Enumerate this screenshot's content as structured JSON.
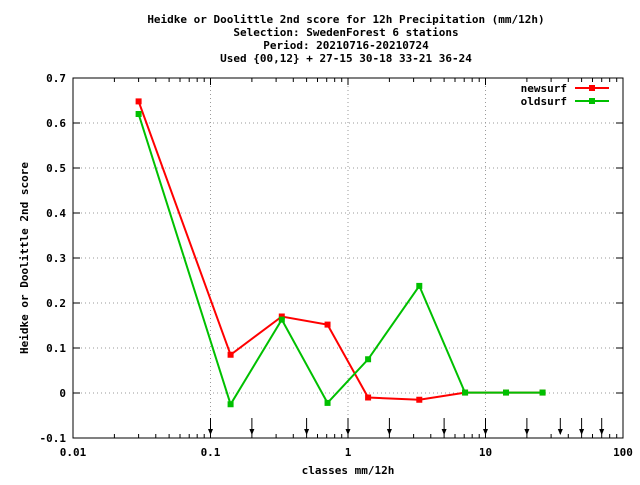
{
  "chart_data": {
    "type": "line",
    "title_lines": [
      "Heidke or Doolittle 2nd score  for 12h Precipitation (mm/12h)",
      "Selection: SwedenForest      6 stations",
      "Period: 20210716-20210724",
      "Used {00,12} + 27-15 30-18 33-21 36-24"
    ],
    "xlabel": "classes mm/12h",
    "ylabel": "Heidke or Doolittle 2nd score",
    "x_scale": "log",
    "xlim": [
      0.01,
      100
    ],
    "ylim": [
      -0.1,
      0.7
    ],
    "x_ticks": [
      {
        "value": 0.01,
        "label": "0.01"
      },
      {
        "value": 0.1,
        "label": "0.1"
      },
      {
        "value": 1,
        "label": "1"
      },
      {
        "value": 10,
        "label": "10"
      },
      {
        "value": 100,
        "label": "100"
      }
    ],
    "y_ticks": [
      {
        "value": -0.1,
        "label": "-0.1"
      },
      {
        "value": 0,
        "label": "0"
      },
      {
        "value": 0.1,
        "label": "0.1"
      },
      {
        "value": 0.2,
        "label": "0.2"
      },
      {
        "value": 0.3,
        "label": "0.3"
      },
      {
        "value": 0.4,
        "label": "0.4"
      },
      {
        "value": 0.5,
        "label": "0.5"
      },
      {
        "value": 0.6,
        "label": "0.6"
      },
      {
        "value": 0.7,
        "label": "0.7"
      }
    ],
    "grid": true,
    "legend_position": "top-right",
    "class_markers": [
      0.1,
      0.2,
      0.5,
      1,
      2,
      5,
      10,
      20,
      35,
      50,
      70
    ],
    "series": [
      {
        "name": "newsurf",
        "color": "#ff0000",
        "x": [
          0.03,
          0.14,
          0.33,
          0.71,
          1.4,
          3.3,
          7.1,
          14.1,
          26
        ],
        "y": [
          0.648,
          0.085,
          0.17,
          0.152,
          -0.01,
          -0.015,
          0.001,
          0.001,
          0.001
        ]
      },
      {
        "name": "oldsurf",
        "color": "#00c000",
        "x": [
          0.03,
          0.14,
          0.33,
          0.71,
          1.4,
          3.3,
          7.1,
          14.1,
          26
        ],
        "y": [
          0.62,
          -0.025,
          0.163,
          -0.022,
          0.075,
          0.238,
          0.001,
          0.001,
          0.001
        ]
      }
    ]
  }
}
